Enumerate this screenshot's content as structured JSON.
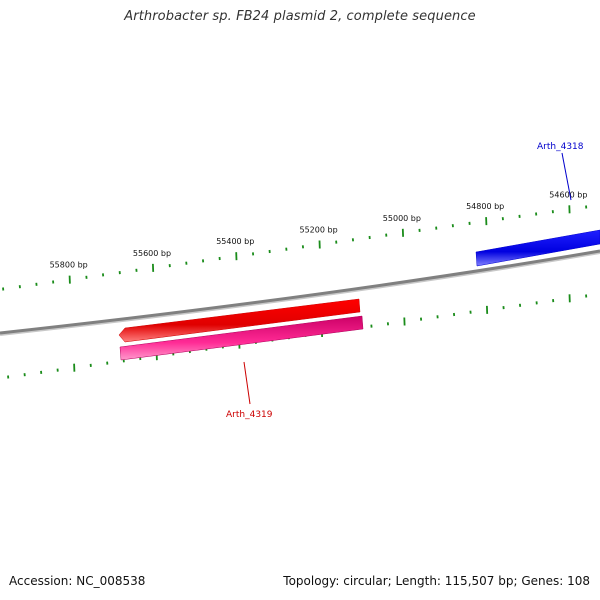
{
  "title": "Arthrobacter sp. FB24 plasmid 2, complete sequence",
  "footer": {
    "accession": "Accession: NC_008538",
    "stats": "Topology: circular; Length: 115,507 bp; Genes: 108"
  },
  "scale": {
    "labels": [
      "55800 bp",
      "55600 bp",
      "55400 bp",
      "55200 bp",
      "55000 bp",
      "54800 bp",
      "54600 bp"
    ]
  },
  "genes": [
    {
      "name": "Arth_4318",
      "color": "#0000ee",
      "strand": "forward"
    },
    {
      "name": "Arth_4319",
      "color": "#ee0000",
      "strand": "reverse"
    }
  ],
  "features": [
    {
      "label": "Arth_4319",
      "color": "#ff0000",
      "type": "CDS",
      "strand": "reverse"
    },
    {
      "label": "Arth_4319",
      "color": "#ff1493",
      "type": "CDS",
      "strand": "reverse"
    }
  ],
  "colors": {
    "backbone": "#808080",
    "ticks": "#1a8c1a",
    "forward_gene": "#0000ff",
    "reverse_gene": "#ff0000",
    "reverse_feature": "#ff3399"
  }
}
